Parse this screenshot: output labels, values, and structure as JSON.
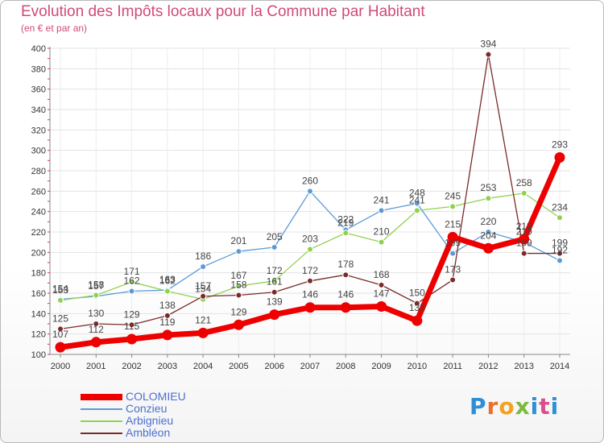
{
  "header": {
    "title": "Evolution des Impôts locaux pour la Commune par Habitant",
    "subtitle": "(en € et par an)"
  },
  "brand": {
    "text": "Proxiti",
    "colors": [
      "#2f8fd6",
      "#e86f2c",
      "#f3a21d",
      "#7cba3c",
      "#2f8fd6",
      "#d94f8a"
    ]
  },
  "chart_data": {
    "type": "line",
    "x": [
      "2000",
      "2001",
      "2002",
      "2003",
      "2004",
      "2005",
      "2006",
      "2007",
      "2008",
      "2009",
      "2010",
      "2011",
      "2012",
      "2013",
      "2014"
    ],
    "ylim": [
      100,
      400
    ],
    "yticks": [
      100,
      120,
      140,
      160,
      180,
      200,
      220,
      240,
      260,
      280,
      300,
      320,
      340,
      360,
      380,
      400
    ],
    "grid": true,
    "legend_position": "bottom-left",
    "series": [
      {
        "name": "COLOMIEU",
        "color": "#ee0000",
        "values": [
          107,
          112,
          115,
          119,
          121,
          129,
          139,
          146,
          146,
          147,
          133,
          215,
          204,
          213,
          293
        ]
      },
      {
        "name": "Conzieu",
        "color": "#5b9bd5",
        "values": [
          154,
          157,
          162,
          163,
          186,
          201,
          205,
          260,
          222,
          241,
          248,
          199,
          220,
          210,
          192
        ]
      },
      {
        "name": "Arbignieu",
        "color": "#8fd14f",
        "values": [
          153,
          158,
          171,
          162,
          154,
          167,
          172,
          203,
          219,
          210,
          241,
          245,
          253,
          258,
          234
        ]
      },
      {
        "name": "Ambléon",
        "color": "#7b2a2a",
        "values": [
          125,
          130,
          129,
          138,
          157,
          158,
          161,
          172,
          178,
          168,
          150,
          173,
          394,
          199,
          199
        ]
      }
    ]
  }
}
